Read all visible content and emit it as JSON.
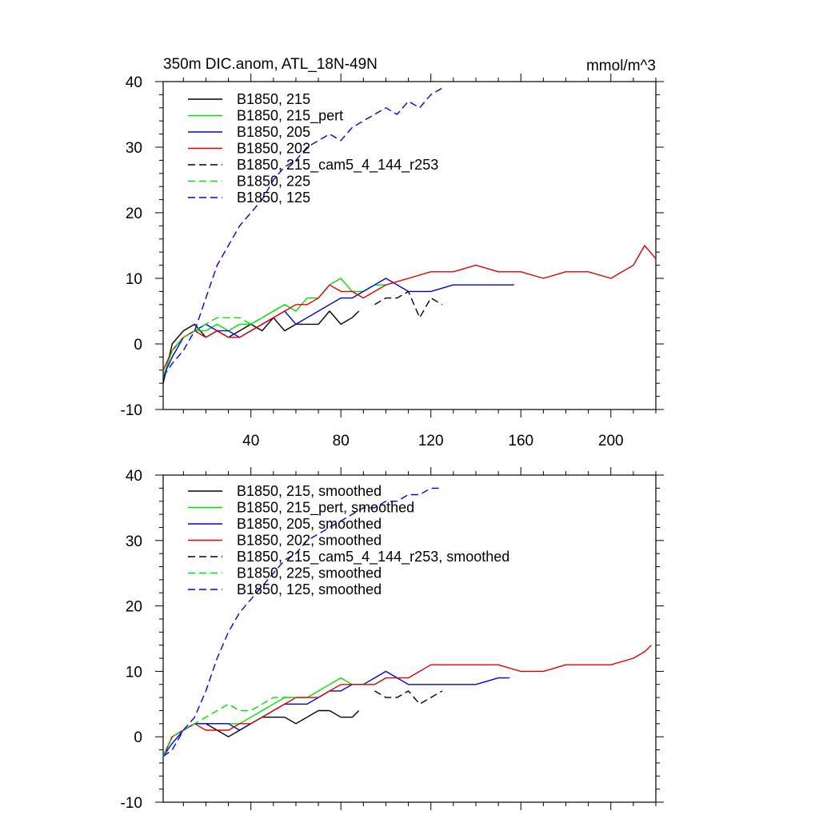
{
  "chart_data": [
    {
      "type": "line",
      "title": "350m DIC.anom, ATL_18N-49N",
      "units": "mmol/m^3",
      "xlim": [
        1,
        220
      ],
      "ylim": [
        -10,
        40
      ],
      "xticks": [
        40,
        80,
        120,
        160,
        200
      ],
      "yticks": [
        -10,
        0,
        10,
        20,
        30,
        40
      ],
      "xtick_labels": [
        "40",
        "80",
        "120",
        "160",
        "200"
      ],
      "ytick_labels": [
        "-10",
        "0",
        "10",
        "20",
        "30",
        "40"
      ],
      "legend_position": "top-left",
      "series": [
        {
          "name": "B1850, 215",
          "color": "#000000",
          "dash": "solid",
          "x": [
            1,
            5,
            10,
            15,
            20,
            25,
            30,
            35,
            40,
            45,
            50,
            55,
            60,
            65,
            70,
            75,
            80,
            85,
            88
          ],
          "y": [
            -6,
            0,
            2,
            3,
            1,
            2,
            1,
            2,
            3,
            2,
            4,
            2,
            3,
            3,
            3,
            5,
            3,
            4,
            5
          ]
        },
        {
          "name": "B1850, 215_pert",
          "color": "#00e000",
          "dash": "solid",
          "x": [
            1,
            5,
            10,
            15,
            20,
            25,
            30,
            35,
            40,
            45,
            50,
            55,
            60,
            65,
            70,
            75,
            80,
            85,
            90,
            95,
            100
          ],
          "y": [
            -5,
            -1,
            1,
            2,
            2,
            3,
            2,
            3,
            3,
            4,
            5,
            6,
            5,
            7,
            7,
            9,
            10,
            8,
            8,
            9,
            9
          ]
        },
        {
          "name": "B1850, 205",
          "color": "#0000e0",
          "dash": "solid",
          "x": [
            1,
            5,
            10,
            15,
            20,
            25,
            30,
            35,
            40,
            45,
            50,
            55,
            60,
            65,
            70,
            75,
            80,
            85,
            90,
            95,
            100,
            110,
            120,
            130,
            140,
            150,
            157
          ],
          "y": [
            -5,
            -2,
            1,
            2,
            3,
            2,
            2,
            1,
            2,
            3,
            4,
            5,
            3,
            4,
            5,
            6,
            7,
            7,
            8,
            9,
            10,
            8,
            8,
            9,
            9,
            9,
            9
          ]
        },
        {
          "name": "B1850, 202",
          "color": "#e00000",
          "dash": "solid",
          "x": [
            1,
            5,
            10,
            15,
            20,
            25,
            30,
            35,
            40,
            45,
            50,
            55,
            60,
            65,
            70,
            75,
            80,
            85,
            90,
            95,
            100,
            110,
            120,
            130,
            140,
            150,
            160,
            170,
            180,
            190,
            200,
            210,
            215,
            220
          ],
          "y": [
            -4,
            -1,
            1,
            2,
            1,
            2,
            1,
            1,
            2,
            3,
            4,
            5,
            6,
            6,
            7,
            9,
            8,
            8,
            7,
            8,
            9,
            10,
            11,
            11,
            12,
            11,
            11,
            10,
            11,
            11,
            10,
            12,
            15,
            13
          ]
        },
        {
          "name": "B1850, 215_cam5_4_144_r253",
          "color": "#000000",
          "dash": "dashed",
          "x": [
            95,
            100,
            105,
            110,
            115,
            120,
            125
          ],
          "y": [
            6,
            7,
            7,
            8,
            4,
            7,
            6
          ]
        },
        {
          "name": "B1850, 225",
          "color": "#00e000",
          "dash": "dashed",
          "x": [
            1,
            5,
            10,
            15,
            20,
            25,
            30,
            35,
            40,
            45,
            50,
            55,
            60
          ],
          "y": [
            -5,
            -1,
            1,
            2,
            3,
            4,
            4,
            4,
            3,
            4,
            5,
            6,
            5
          ]
        },
        {
          "name": "B1850, 125",
          "color": "#0000e0",
          "dash": "dashed",
          "x": [
            1,
            5,
            10,
            15,
            20,
            25,
            30,
            35,
            40,
            45,
            50,
            55,
            60,
            65,
            70,
            75,
            80,
            85,
            90,
            95,
            100,
            105,
            110,
            115,
            120,
            125
          ],
          "y": [
            -5,
            -3,
            -1,
            2,
            7,
            12,
            15,
            18,
            20,
            22,
            25,
            27,
            28,
            30,
            31,
            32,
            31,
            33,
            34,
            35,
            36,
            35,
            37,
            36,
            38,
            39
          ]
        }
      ]
    },
    {
      "type": "line",
      "title": "",
      "units": "",
      "xlim": [
        1,
        220
      ],
      "ylim": [
        -10,
        40
      ],
      "xticks": [
        40,
        80,
        120,
        160,
        200
      ],
      "yticks": [
        -10,
        0,
        10,
        20,
        30,
        40
      ],
      "xtick_labels": [],
      "ytick_labels": [
        "-10",
        "0",
        "10",
        "20",
        "30",
        "40"
      ],
      "legend_position": "top-left",
      "series": [
        {
          "name": "B1850, 215, smoothed",
          "color": "#000000",
          "dash": "solid",
          "x": [
            1,
            5,
            10,
            15,
            20,
            25,
            30,
            35,
            40,
            45,
            50,
            55,
            60,
            65,
            70,
            75,
            80,
            85,
            88
          ],
          "y": [
            -3,
            0,
            1,
            2,
            2,
            1,
            0,
            1,
            2,
            3,
            3,
            3,
            2,
            3,
            4,
            4,
            3,
            3,
            4
          ]
        },
        {
          "name": "B1850, 215_pert, smoothed",
          "color": "#00e000",
          "dash": "solid",
          "x": [
            1,
            5,
            10,
            15,
            20,
            25,
            30,
            35,
            40,
            45,
            50,
            55,
            60,
            65,
            70,
            75,
            80,
            85,
            90,
            95,
            100
          ],
          "y": [
            -3,
            0,
            1,
            2,
            2,
            2,
            2,
            2,
            3,
            4,
            5,
            6,
            6,
            6,
            7,
            8,
            9,
            8,
            8,
            8,
            9
          ]
        },
        {
          "name": "B1850, 205, smoothed",
          "color": "#0000e0",
          "dash": "solid",
          "x": [
            1,
            5,
            10,
            15,
            20,
            25,
            30,
            35,
            40,
            45,
            50,
            55,
            60,
            65,
            70,
            75,
            80,
            85,
            90,
            95,
            100,
            110,
            120,
            130,
            140,
            150,
            155
          ],
          "y": [
            -3,
            -1,
            1,
            2,
            2,
            2,
            2,
            1,
            2,
            3,
            4,
            5,
            5,
            5,
            6,
            7,
            7,
            8,
            8,
            9,
            10,
            8,
            8,
            8,
            8,
            9,
            9
          ]
        },
        {
          "name": "B1850, 202, smoothed",
          "color": "#e00000",
          "dash": "solid",
          "x": [
            1,
            5,
            10,
            15,
            20,
            25,
            30,
            35,
            40,
            45,
            50,
            55,
            60,
            65,
            70,
            75,
            80,
            85,
            90,
            95,
            100,
            110,
            120,
            130,
            140,
            150,
            160,
            170,
            180,
            190,
            200,
            210,
            215,
            218
          ],
          "y": [
            -3,
            0,
            1,
            2,
            1,
            1,
            1,
            2,
            2,
            3,
            4,
            5,
            6,
            6,
            6,
            7,
            8,
            8,
            8,
            8,
            9,
            9,
            11,
            11,
            11,
            11,
            10,
            10,
            11,
            11,
            11,
            12,
            13,
            14
          ]
        },
        {
          "name": "B1850, 215_cam5_4_144_r253, smoothed",
          "color": "#000000",
          "dash": "dashed",
          "x": [
            95,
            100,
            105,
            110,
            115,
            120,
            125
          ],
          "y": [
            7,
            6,
            6,
            7,
            5,
            6,
            7
          ]
        },
        {
          "name": "B1850, 225, smoothed",
          "color": "#00e000",
          "dash": "dashed",
          "x": [
            1,
            5,
            10,
            15,
            20,
            25,
            30,
            35,
            40,
            45,
            50,
            55,
            60
          ],
          "y": [
            -3,
            0,
            1,
            2,
            3,
            4,
            5,
            4,
            4,
            5,
            6,
            6,
            6
          ]
        },
        {
          "name": "B1850, 125, smoothed",
          "color": "#0000e0",
          "dash": "dashed",
          "x": [
            1,
            5,
            10,
            15,
            20,
            25,
            30,
            35,
            40,
            45,
            50,
            55,
            60,
            65,
            70,
            75,
            80,
            85,
            90,
            95,
            100,
            105,
            110,
            115,
            120,
            125
          ],
          "y": [
            -3,
            -2,
            1,
            3,
            7,
            12,
            16,
            19,
            21,
            23,
            25,
            27,
            28,
            30,
            31,
            32,
            33,
            34,
            35,
            35,
            36,
            36,
            37,
            37,
            38,
            38
          ]
        }
      ]
    }
  ]
}
